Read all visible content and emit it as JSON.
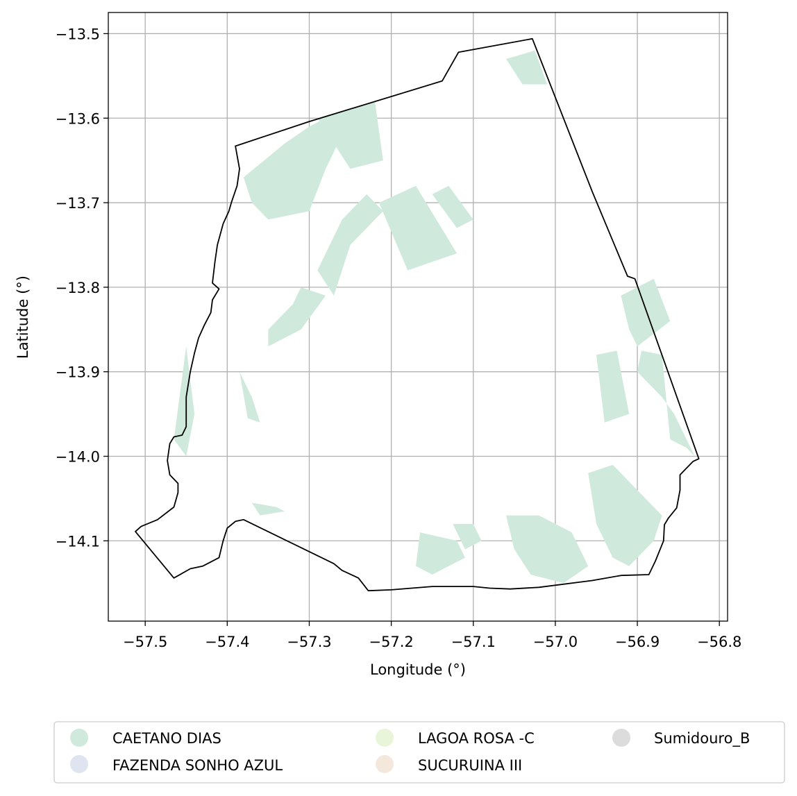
{
  "map": {
    "xlabel": "Longitude (°)",
    "ylabel": "Latitude (°)",
    "xlim": [
      -57.545,
      -56.79
    ],
    "ylim": [
      -14.195,
      -13.475
    ],
    "x_ticks": [
      -57.5,
      -57.4,
      -57.3,
      -57.2,
      -57.1,
      -57.0,
      -56.9,
      -56.8
    ],
    "y_ticks": [
      -13.5,
      -13.6,
      -13.7,
      -13.8,
      -13.9,
      -14.0,
      -14.1
    ],
    "x_tick_labels": [
      "−57.5",
      "−57.4",
      "−57.3",
      "−57.2",
      "−57.1",
      "−57.0",
      "−56.9",
      "−56.8"
    ],
    "y_tick_labels": [
      "−13.5",
      "−13.6",
      "−13.7",
      "−13.8",
      "−13.9",
      "−14.0",
      "−14.1"
    ],
    "grid": true,
    "fill_color": "#cfeadc",
    "legend": {
      "placement": "bottom",
      "entries": [
        {
          "label": "CAETANO DIAS",
          "color": "#cfeadc"
        },
        {
          "label": "FAZENDA SONHO AZUL",
          "color": "#dfe4f1"
        },
        {
          "label": "LAGOA ROSA -C",
          "color": "#e9f5d9"
        },
        {
          "label": "SUCURUINA III",
          "color": "#f4e8dc"
        },
        {
          "label": "Sumidouro_B",
          "color": "#dcdcdc"
        }
      ]
    },
    "boundary": [
      [
        -57.39,
        -13.633
      ],
      [
        -57.3,
        -13.604
      ],
      [
        -57.138,
        -13.556
      ],
      [
        -57.118,
        -13.522
      ],
      [
        -57.028,
        -13.506
      ],
      [
        -56.955,
        -13.687
      ],
      [
        -56.912,
        -13.787
      ],
      [
        -56.903,
        -13.79
      ],
      [
        -56.825,
        -14.003
      ],
      [
        -56.832,
        -14.006
      ],
      [
        -56.84,
        -14.014
      ],
      [
        -56.848,
        -14.022
      ],
      [
        -56.848,
        -14.04
      ],
      [
        -56.852,
        -14.061
      ],
      [
        -56.862,
        -14.073
      ],
      [
        -56.867,
        -14.081
      ],
      [
        -56.868,
        -14.1
      ],
      [
        -56.878,
        -14.124
      ],
      [
        -56.886,
        -14.14
      ],
      [
        -56.92,
        -14.141
      ],
      [
        -56.955,
        -14.147
      ],
      [
        -57.02,
        -14.155
      ],
      [
        -57.055,
        -14.157
      ],
      [
        -57.08,
        -14.156
      ],
      [
        -57.1,
        -14.154
      ],
      [
        -57.15,
        -14.154
      ],
      [
        -57.2,
        -14.158
      ],
      [
        -57.228,
        -14.159
      ],
      [
        -57.24,
        -14.144
      ],
      [
        -57.26,
        -14.135
      ],
      [
        -57.27,
        -14.127
      ],
      [
        -57.38,
        -14.075
      ],
      [
        -57.39,
        -14.077
      ],
      [
        -57.4,
        -14.085
      ],
      [
        -57.405,
        -14.1
      ],
      [
        -57.41,
        -14.12
      ],
      [
        -57.43,
        -14.13
      ],
      [
        -57.445,
        -14.133
      ],
      [
        -57.465,
        -14.144
      ],
      [
        -57.512,
        -14.089
      ],
      [
        -57.505,
        -14.083
      ],
      [
        -57.485,
        -14.075
      ],
      [
        -57.465,
        -14.06
      ],
      [
        -57.46,
        -14.043
      ],
      [
        -57.46,
        -14.032
      ],
      [
        -57.47,
        -14.022
      ],
      [
        -57.473,
        -14.005
      ],
      [
        -57.47,
        -13.985
      ],
      [
        -57.465,
        -13.977
      ],
      [
        -57.455,
        -13.975
      ],
      [
        -57.45,
        -13.965
      ],
      [
        -57.45,
        -13.93
      ],
      [
        -57.445,
        -13.9
      ],
      [
        -57.44,
        -13.878
      ],
      [
        -57.435,
        -13.86
      ],
      [
        -57.428,
        -13.845
      ],
      [
        -57.42,
        -13.83
      ],
      [
        -57.418,
        -13.815
      ],
      [
        -57.41,
        -13.802
      ],
      [
        -57.418,
        -13.795
      ],
      [
        -57.415,
        -13.77
      ],
      [
        -57.412,
        -13.75
      ],
      [
        -57.405,
        -13.725
      ],
      [
        -57.398,
        -13.71
      ],
      [
        -57.395,
        -13.7
      ],
      [
        -57.388,
        -13.68
      ],
      [
        -57.385,
        -13.66
      ],
      [
        -57.39,
        -13.633
      ]
    ],
    "patches": [
      [
        [
          -57.38,
          -13.67
        ],
        [
          -57.33,
          -13.63
        ],
        [
          -57.3,
          -13.61
        ],
        [
          -57.28,
          -13.6
        ],
        [
          -57.26,
          -13.62
        ],
        [
          -57.28,
          -13.66
        ],
        [
          -57.3,
          -13.71
        ],
        [
          -57.35,
          -13.72
        ],
        [
          -57.37,
          -13.7
        ]
      ],
      [
        [
          -57.29,
          -13.6
        ],
        [
          -57.22,
          -13.58
        ],
        [
          -57.21,
          -13.65
        ],
        [
          -57.25,
          -13.66
        ]
      ],
      [
        [
          -57.215,
          -13.7
        ],
        [
          -57.17,
          -13.68
        ],
        [
          -57.12,
          -13.76
        ],
        [
          -57.18,
          -13.78
        ]
      ],
      [
        [
          -57.15,
          -13.69
        ],
        [
          -57.13,
          -13.68
        ],
        [
          -57.1,
          -13.72
        ],
        [
          -57.12,
          -13.73
        ]
      ],
      [
        [
          -57.26,
          -13.72
        ],
        [
          -57.23,
          -13.69
        ],
        [
          -57.21,
          -13.71
        ],
        [
          -57.25,
          -13.75
        ],
        [
          -57.27,
          -13.81
        ],
        [
          -57.29,
          -13.78
        ]
      ],
      [
        [
          -57.32,
          -13.82
        ],
        [
          -57.31,
          -13.8
        ],
        [
          -57.28,
          -13.81
        ],
        [
          -57.31,
          -13.85
        ],
        [
          -57.35,
          -13.87
        ],
        [
          -57.35,
          -13.85
        ]
      ],
      [
        [
          -57.385,
          -13.9
        ],
        [
          -57.37,
          -13.93
        ],
        [
          -57.36,
          -13.96
        ],
        [
          -57.375,
          -13.955
        ]
      ],
      [
        [
          -57.45,
          -13.87
        ],
        [
          -57.44,
          -13.95
        ],
        [
          -57.45,
          -14.0
        ],
        [
          -57.465,
          -13.98
        ]
      ],
      [
        [
          -57.06,
          -13.53
        ],
        [
          -57.025,
          -13.52
        ],
        [
          -57.01,
          -13.56
        ],
        [
          -57.04,
          -13.56
        ]
      ],
      [
        [
          -56.92,
          -13.81
        ],
        [
          -56.88,
          -13.79
        ],
        [
          -56.86,
          -13.84
        ],
        [
          -56.9,
          -13.87
        ],
        [
          -56.91,
          -13.85
        ]
      ],
      [
        [
          -56.895,
          -13.875
        ],
        [
          -56.87,
          -13.88
        ],
        [
          -56.86,
          -13.98
        ],
        [
          -56.84,
          -13.99
        ],
        [
          -56.83,
          -14.0
        ],
        [
          -56.855,
          -13.95
        ],
        [
          -56.87,
          -13.93
        ],
        [
          -56.9,
          -13.9
        ]
      ],
      [
        [
          -56.95,
          -13.88
        ],
        [
          -56.925,
          -13.875
        ],
        [
          -56.91,
          -13.95
        ],
        [
          -56.94,
          -13.96
        ]
      ],
      [
        [
          -56.96,
          -14.02
        ],
        [
          -56.93,
          -14.01
        ],
        [
          -56.9,
          -14.04
        ],
        [
          -56.87,
          -14.07
        ],
        [
          -56.88,
          -14.1
        ],
        [
          -56.91,
          -14.13
        ],
        [
          -56.93,
          -14.12
        ],
        [
          -56.95,
          -14.08
        ]
      ],
      [
        [
          -57.06,
          -14.07
        ],
        [
          -57.02,
          -14.07
        ],
        [
          -56.98,
          -14.09
        ],
        [
          -56.96,
          -14.13
        ],
        [
          -56.99,
          -14.15
        ],
        [
          -57.03,
          -14.14
        ],
        [
          -57.05,
          -14.11
        ]
      ],
      [
        [
          -57.125,
          -14.08
        ],
        [
          -57.1,
          -14.08
        ],
        [
          -57.09,
          -14.1
        ],
        [
          -57.11,
          -14.11
        ]
      ],
      [
        [
          -57.165,
          -14.09
        ],
        [
          -57.12,
          -14.1
        ],
        [
          -57.11,
          -14.12
        ],
        [
          -57.15,
          -14.14
        ],
        [
          -57.17,
          -14.13
        ]
      ],
      [
        [
          -57.37,
          -14.055
        ],
        [
          -57.34,
          -14.06
        ],
        [
          -57.33,
          -14.065
        ],
        [
          -57.36,
          -14.07
        ]
      ]
    ]
  }
}
